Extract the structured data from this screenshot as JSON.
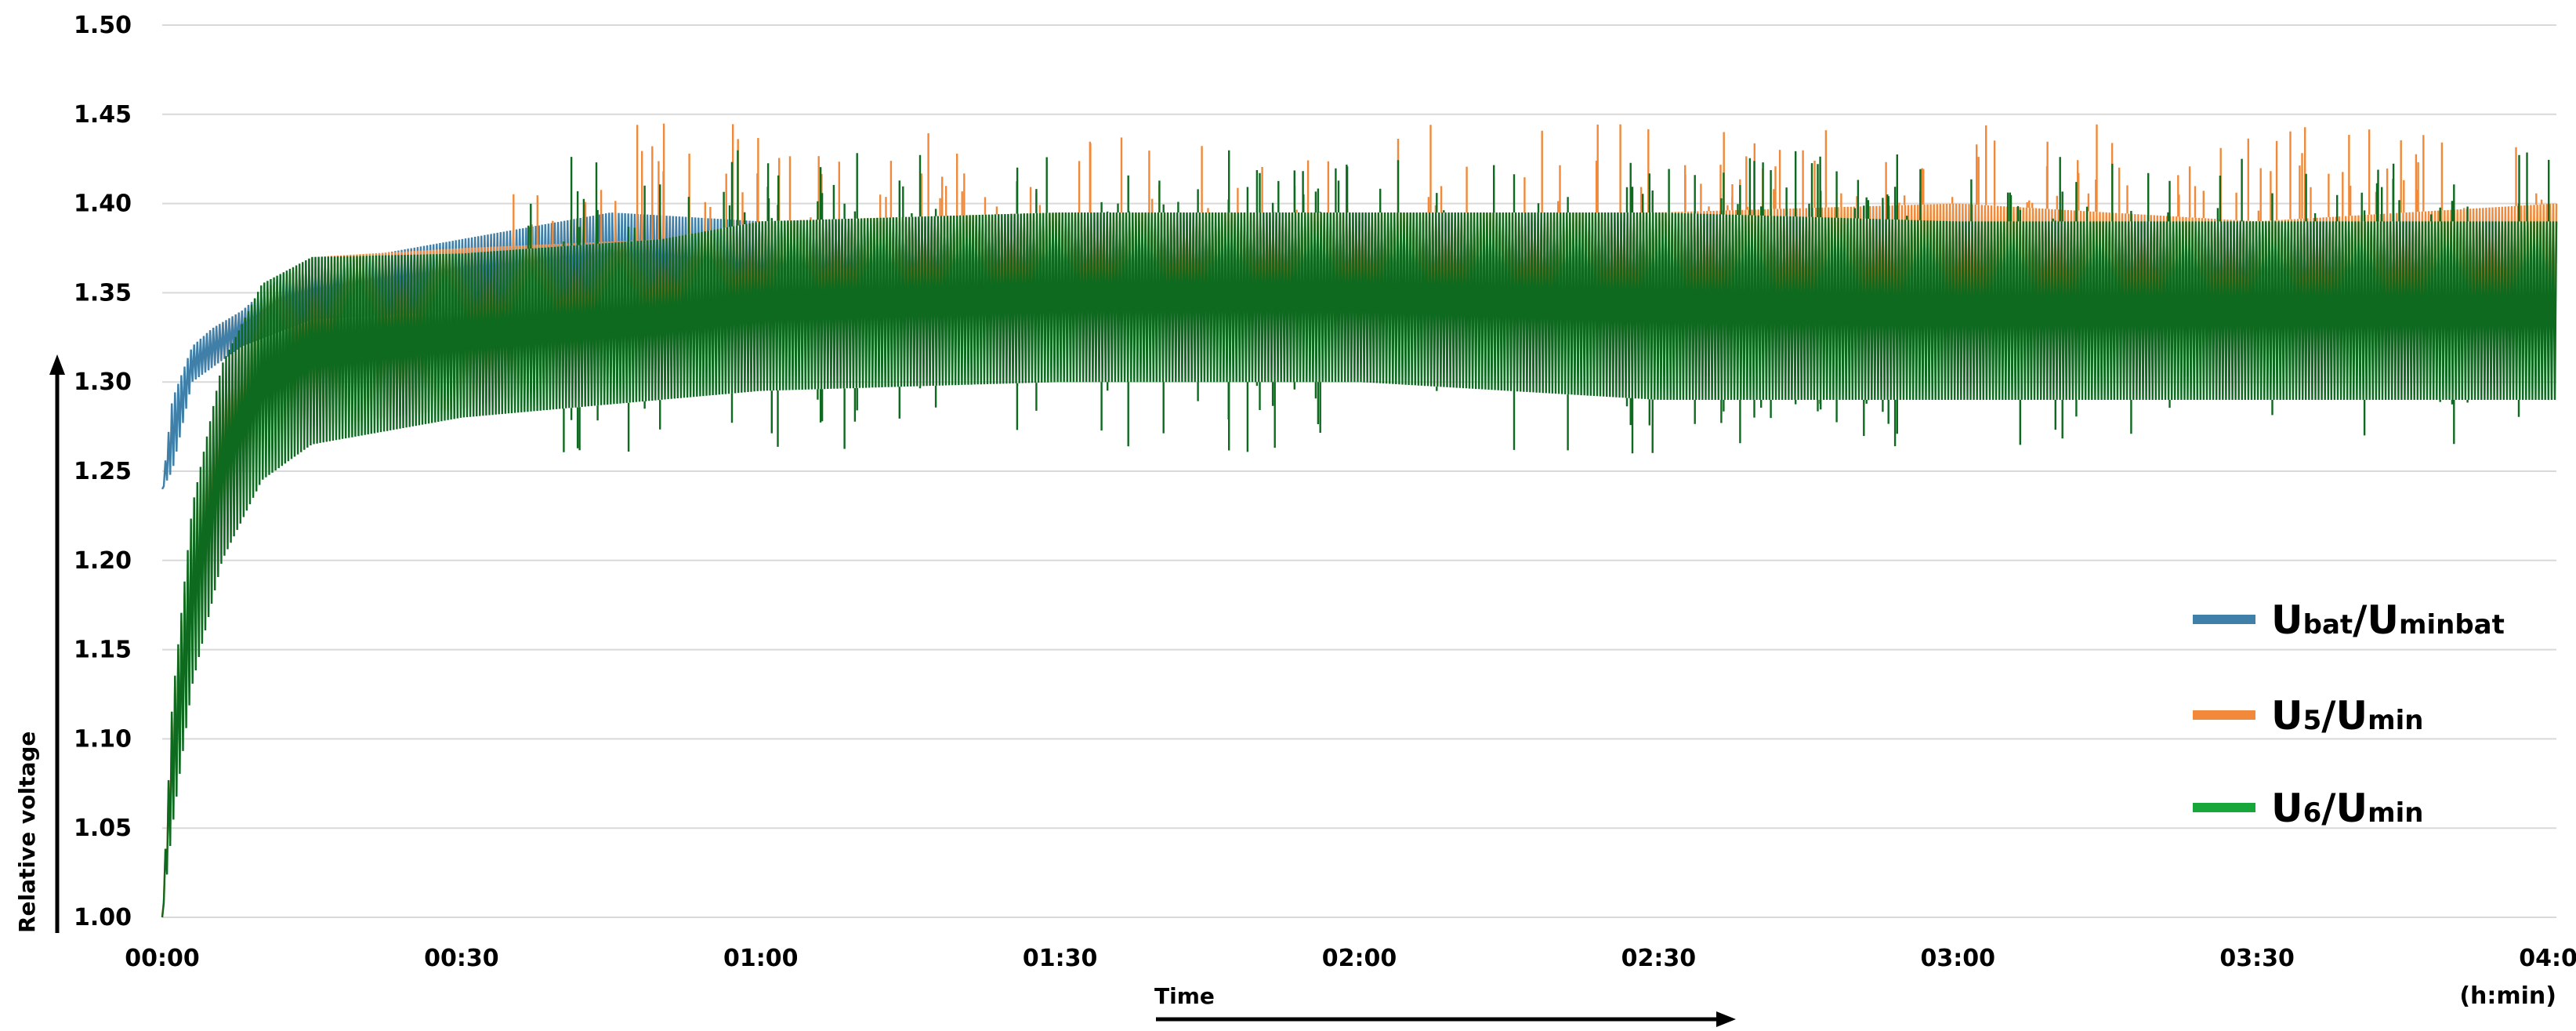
{
  "chart_data": {
    "type": "line",
    "xlabel": "Time",
    "x_unit": "(h:min)",
    "ylabel": "Relative voltage",
    "ylim": [
      1.0,
      1.5
    ],
    "xlim": [
      "00:00",
      "04:00"
    ],
    "x_ticks": [
      "00:00",
      "00:30",
      "01:00",
      "01:30",
      "02:00",
      "02:30",
      "03:00",
      "03:30",
      "04:00"
    ],
    "y_ticks": [
      "1.00",
      "1.05",
      "1.10",
      "1.15",
      "1.20",
      "1.25",
      "1.30",
      "1.35",
      "1.40",
      "1.45",
      "1.50"
    ],
    "grid": "horizontal",
    "legend_position": "right",
    "series": [
      {
        "legend": {
          "main1": "U",
          "sub1": "bat",
          "sep": "/",
          "main2": "U",
          "sub2": "minbat"
        },
        "color": "#3f7fa8",
        "upper_envelope": [
          [
            "00:00",
            1.24
          ],
          [
            "00:01",
            1.29
          ],
          [
            "00:03",
            1.32
          ],
          [
            "00:05",
            1.33
          ],
          [
            "00:08",
            1.34
          ],
          [
            "00:12",
            1.36
          ],
          [
            "00:20",
            1.37
          ],
          [
            "00:30",
            1.38
          ],
          [
            "00:45",
            1.395
          ],
          [
            "01:00",
            1.39
          ],
          [
            "01:30",
            1.39
          ],
          [
            "02:00",
            1.39
          ],
          [
            "02:30",
            1.39
          ],
          [
            "03:00",
            1.39
          ],
          [
            "03:30",
            1.39
          ],
          [
            "04:00",
            1.39
          ]
        ],
        "lower_envelope": [
          [
            "00:00",
            1.24
          ],
          [
            "00:01",
            1.25
          ],
          [
            "00:03",
            1.3
          ],
          [
            "00:08",
            1.32
          ],
          [
            "00:15",
            1.335
          ],
          [
            "00:30",
            1.34
          ],
          [
            "00:50",
            1.34
          ],
          [
            "01:00",
            1.33
          ],
          [
            "01:30",
            1.33
          ],
          [
            "02:00",
            1.33
          ],
          [
            "02:30",
            1.32
          ],
          [
            "03:00",
            1.32
          ],
          [
            "03:30",
            1.32
          ],
          [
            "04:00",
            1.32
          ]
        ]
      },
      {
        "legend": {
          "main1": "U",
          "sub1": "5",
          "sep": "/",
          "main2": "U",
          "sub2": "min"
        },
        "color": "#f08a3a",
        "upper_envelope": [
          [
            "00:00",
            1.0
          ],
          [
            "00:01",
            1.12
          ],
          [
            "00:03",
            1.22
          ],
          [
            "00:06",
            1.3
          ],
          [
            "00:10",
            1.35
          ],
          [
            "00:15",
            1.37
          ],
          [
            "00:30",
            1.375
          ],
          [
            "00:50",
            1.38
          ],
          [
            "01:00",
            1.39
          ],
          [
            "01:30",
            1.395
          ],
          [
            "02:00",
            1.395
          ],
          [
            "02:30",
            1.395
          ],
          [
            "03:00",
            1.4
          ],
          [
            "03:30",
            1.39
          ],
          [
            "04:00",
            1.4
          ]
        ],
        "lower_envelope": [
          [
            "00:00",
            1.0
          ],
          [
            "00:01",
            1.06
          ],
          [
            "00:03",
            1.15
          ],
          [
            "00:06",
            1.22
          ],
          [
            "00:10",
            1.26
          ],
          [
            "00:15",
            1.275
          ],
          [
            "00:30",
            1.285
          ],
          [
            "00:50",
            1.31
          ],
          [
            "01:00",
            1.315
          ],
          [
            "01:30",
            1.32
          ],
          [
            "02:00",
            1.32
          ],
          [
            "02:30",
            1.31
          ],
          [
            "03:00",
            1.31
          ],
          [
            "03:30",
            1.31
          ],
          [
            "04:00",
            1.31
          ]
        ],
        "spikes_max": 1.445
      },
      {
        "legend": {
          "main1": "U",
          "sub1": "6",
          "sep": "/",
          "main2": "U",
          "sub2": "min"
        },
        "color": "#0d6a1f",
        "legend_color": "#17a63a",
        "upper_envelope": [
          [
            "00:00",
            1.0
          ],
          [
            "00:01",
            1.12
          ],
          [
            "00:03",
            1.23
          ],
          [
            "00:06",
            1.31
          ],
          [
            "00:10",
            1.355
          ],
          [
            "00:15",
            1.37
          ],
          [
            "00:30",
            1.372
          ],
          [
            "00:50",
            1.38
          ],
          [
            "01:00",
            1.39
          ],
          [
            "01:30",
            1.395
          ],
          [
            "02:00",
            1.395
          ],
          [
            "02:30",
            1.395
          ],
          [
            "03:00",
            1.39
          ],
          [
            "03:30",
            1.39
          ],
          [
            "04:00",
            1.39
          ]
        ],
        "lower_envelope": [
          [
            "00:00",
            1.0
          ],
          [
            "00:01",
            1.05
          ],
          [
            "00:03",
            1.13
          ],
          [
            "00:06",
            1.2
          ],
          [
            "00:10",
            1.245
          ],
          [
            "00:15",
            1.265
          ],
          [
            "00:30",
            1.28
          ],
          [
            "00:50",
            1.29
          ],
          [
            "01:00",
            1.295
          ],
          [
            "01:30",
            1.3
          ],
          [
            "02:00",
            1.3
          ],
          [
            "02:30",
            1.29
          ],
          [
            "03:00",
            1.29
          ],
          [
            "03:30",
            1.29
          ],
          [
            "04:00",
            1.29
          ]
        ],
        "spikes_min": 1.26,
        "spikes_max": 1.43
      }
    ]
  }
}
